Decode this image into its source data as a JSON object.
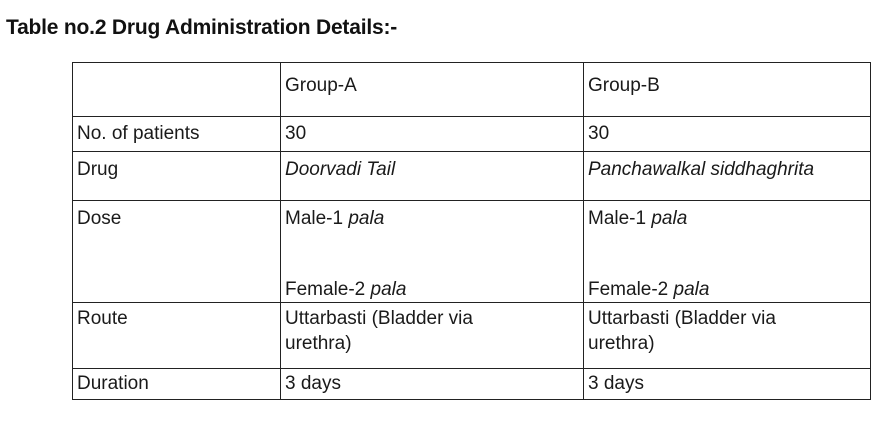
{
  "title": "Table no.2 Drug Administration Details:-",
  "table": {
    "header": {
      "blank": "",
      "group_a": "Group-A",
      "group_b": "Group-B"
    },
    "patients": {
      "label": "No. of patients",
      "group_a": "30",
      "group_b": "30"
    },
    "drug": {
      "label": "Drug",
      "group_a": "Doorvadi Tail",
      "group_b": "Panchawalkal siddhaghrita"
    },
    "dose": {
      "label": "Dose",
      "male_prefix": "Male-1 ",
      "female_prefix": "Female-2 ",
      "unit": "pala"
    },
    "route": {
      "label": "Route",
      "group_a_line1": "Uttarbasti (Bladder via",
      "group_a_line2": "urethra)",
      "group_b_line1": "Uttarbasti (Bladder via",
      "group_b_line2": "urethra)"
    },
    "duration": {
      "label": "Duration",
      "group_a": "3 days",
      "group_b": "3 days"
    }
  }
}
